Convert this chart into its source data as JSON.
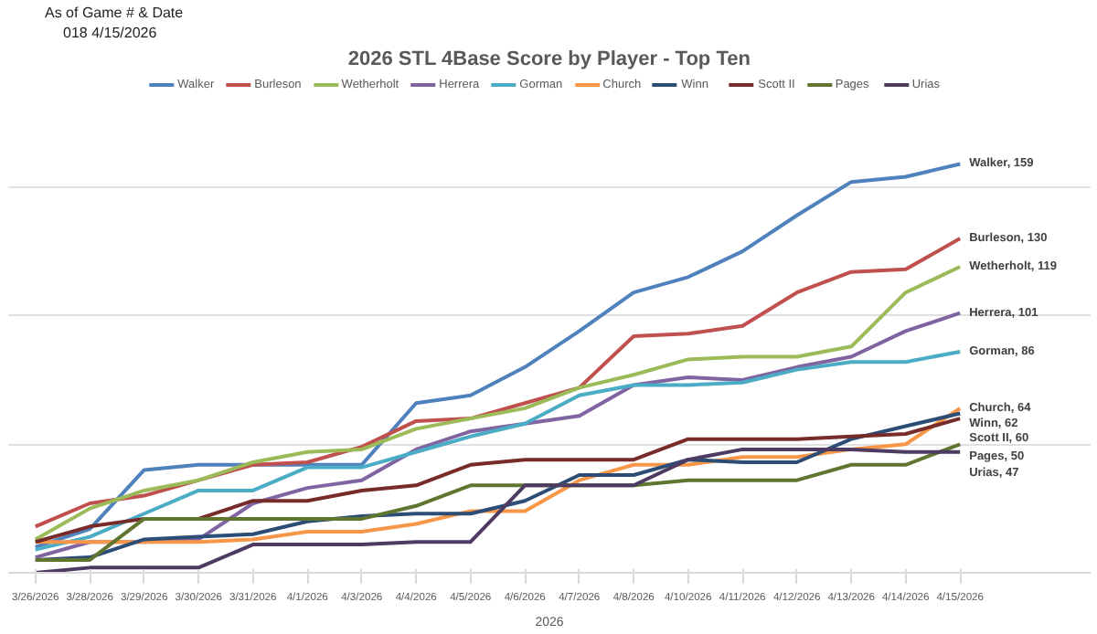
{
  "chart_data": {
    "type": "line",
    "title": "2026 STL 4Base Score by Player - Top Ten",
    "xlabel": "2026",
    "annotations": [
      "As of Game # & Date",
      "018",
      "4/15/2026"
    ],
    "categories": [
      "3/26/2026",
      "3/28/2026",
      "3/29/2026",
      "3/30/2026",
      "3/31/2026",
      "4/1/2026",
      "4/3/2026",
      "4/4/2026",
      "4/5/2026",
      "4/6/2026",
      "4/7/2026",
      "4/8/2026",
      "4/10/2026",
      "4/11/2026",
      "4/12/2026",
      "4/13/2026",
      "4/14/2026",
      "4/15/2026"
    ],
    "series": [
      {
        "name": "Walker",
        "color": "#4f81bd",
        "values": [
          10,
          17,
          40,
          42,
          42,
          42,
          42,
          66,
          69,
          80,
          94,
          109,
          115,
          125,
          139,
          152,
          154,
          159
        ],
        "value_labels": [
          null,
          null,
          null,
          null,
          null,
          null,
          null,
          null,
          null,
          null,
          null,
          null,
          null,
          null,
          null,
          null,
          null,
          "Walker, 159"
        ]
      },
      {
        "name": "Burleson",
        "color": "#c0504d",
        "values": [
          18,
          27,
          30,
          36,
          42,
          43,
          49,
          59,
          60,
          66,
          72,
          92,
          93,
          96,
          109,
          117,
          118,
          130
        ],
        "value_labels": [
          null,
          null,
          null,
          null,
          null,
          null,
          null,
          null,
          null,
          null,
          null,
          null,
          null,
          null,
          null,
          null,
          null,
          "Burleson, 130"
        ]
      },
      {
        "name": "Wetherholt",
        "color": "#9bbb59",
        "values": [
          13,
          25,
          32,
          36,
          43,
          47,
          48,
          56,
          60,
          64,
          72,
          77,
          83,
          84,
          84,
          88,
          109,
          119
        ],
        "value_labels": [
          null,
          null,
          null,
          null,
          null,
          null,
          null,
          null,
          null,
          null,
          null,
          null,
          null,
          null,
          null,
          null,
          null,
          "Wetherholt, 119"
        ]
      },
      {
        "name": "Herrera",
        "color": "#8064a2",
        "values": [
          6,
          12,
          12,
          13,
          27,
          33,
          36,
          48,
          55,
          58,
          61,
          73,
          76,
          75,
          80,
          84,
          94,
          101
        ],
        "value_labels": [
          null,
          null,
          null,
          null,
          null,
          null,
          null,
          null,
          null,
          null,
          null,
          null,
          null,
          null,
          null,
          null,
          null,
          "Herrera, 101"
        ]
      },
      {
        "name": "Gorman",
        "color": "#4bacc6",
        "values": [
          9,
          14,
          23,
          32,
          32,
          41,
          41,
          47,
          53,
          58,
          69,
          73,
          73,
          74,
          79,
          82,
          82,
          86
        ],
        "value_labels": [
          null,
          null,
          null,
          null,
          null,
          null,
          null,
          null,
          null,
          null,
          null,
          null,
          null,
          null,
          null,
          null,
          null,
          "Gorman, 86"
        ]
      },
      {
        "name": "Church",
        "color": "#f79646",
        "values": [
          12,
          12,
          12,
          12,
          13,
          16,
          16,
          19,
          24,
          24,
          36,
          42,
          42,
          45,
          45,
          48,
          50,
          64
        ],
        "value_labels": [
          null,
          null,
          null,
          null,
          null,
          null,
          null,
          null,
          null,
          null,
          null,
          null,
          null,
          null,
          null,
          null,
          null,
          "Church, 64"
        ]
      },
      {
        "name": "Winn",
        "color": "#2c4d75",
        "values": [
          5,
          6,
          13,
          14,
          15,
          20,
          22,
          23,
          23,
          28,
          38,
          38,
          44,
          43,
          43,
          52,
          57,
          62
        ],
        "value_labels": [
          null,
          null,
          null,
          null,
          null,
          null,
          null,
          null,
          null,
          null,
          null,
          null,
          null,
          null,
          null,
          null,
          null,
          "Winn, 62"
        ]
      },
      {
        "name": "Scott II",
        "color": "#772c2a",
        "values": [
          12,
          18,
          21,
          21,
          28,
          28,
          32,
          34,
          42,
          44,
          44,
          44,
          52,
          52,
          52,
          53,
          54,
          60
        ],
        "value_labels": [
          null,
          null,
          null,
          null,
          null,
          null,
          null,
          null,
          null,
          null,
          null,
          null,
          null,
          null,
          null,
          null,
          null,
          "Scott II, 60"
        ]
      },
      {
        "name": "Pages",
        "color": "#5f7530",
        "values": [
          5,
          5,
          21,
          21,
          21,
          21,
          21,
          26,
          34,
          34,
          34,
          34,
          36,
          36,
          36,
          42,
          42,
          50
        ],
        "value_labels": [
          null,
          null,
          null,
          null,
          null,
          null,
          null,
          null,
          null,
          null,
          null,
          null,
          null,
          null,
          null,
          null,
          null,
          "Pages, 50"
        ]
      },
      {
        "name": "Urias",
        "color": "#4d3b62",
        "values": [
          0,
          2,
          2,
          2,
          11,
          11,
          11,
          12,
          12,
          34,
          34,
          34,
          44,
          48,
          48,
          48,
          47,
          47
        ],
        "value_labels": [
          null,
          null,
          null,
          null,
          null,
          null,
          null,
          null,
          null,
          null,
          null,
          null,
          null,
          null,
          null,
          null,
          null,
          "Urias, 47"
        ]
      }
    ],
    "tick_labels": "x",
    "grid": "y",
    "legend": "top",
    "marker": "none",
    "line_style": "solid"
  }
}
